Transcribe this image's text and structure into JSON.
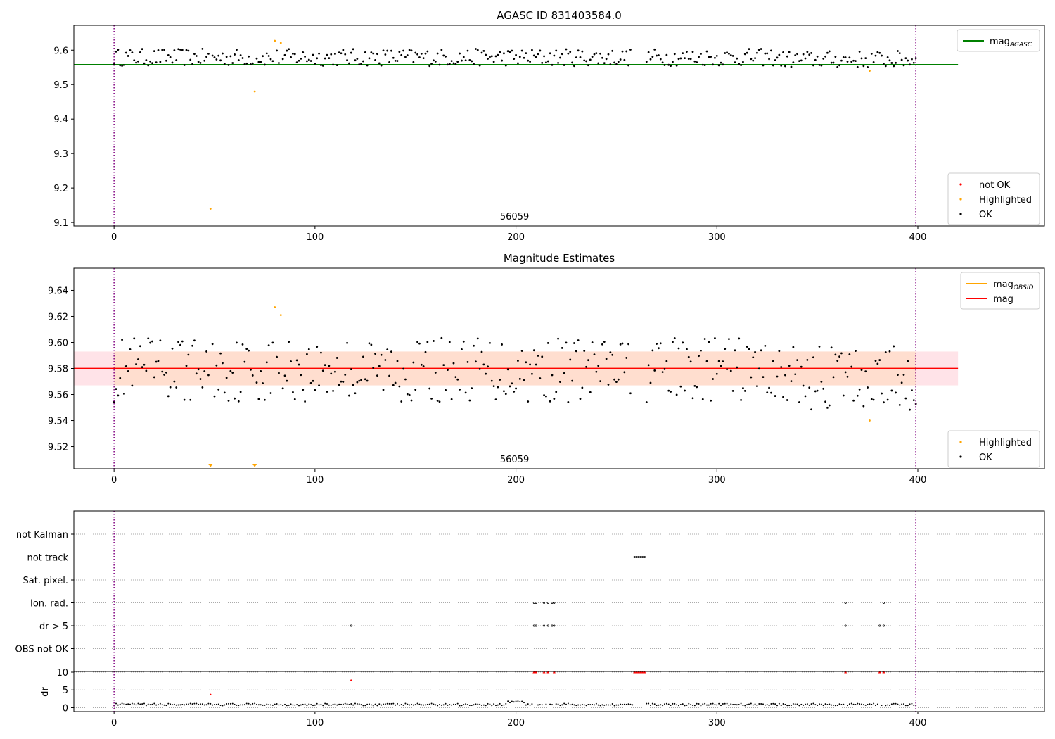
{
  "figure": {
    "title": "AGASC ID 831403584.0",
    "obsid_label": "56059",
    "colors": {
      "ok": "#000000",
      "highlighted": "#ffa500",
      "not_ok": "#ff0000",
      "agasc_line": "#008000",
      "mag_line": "#ff0000",
      "obsid_line": "#ffa500",
      "band": "#ffc0cb",
      "obsid_band": "#ffdab9",
      "vline": "#800080"
    }
  },
  "chart_data": [
    {
      "type": "scatter",
      "title": "AGASC ID 831403584.0",
      "xlim": [
        -20,
        463
      ],
      "ylim": [
        9.09,
        9.672
      ],
      "xticks": [
        0,
        100,
        200,
        300,
        400
      ],
      "yticks": [
        9.1,
        9.2,
        9.3,
        9.4,
        9.5,
        9.6
      ],
      "ytick_labels": [
        "9.1",
        "9.2",
        "9.3",
        "9.4",
        "9.5",
        "9.6"
      ],
      "vlines": [
        0,
        399
      ],
      "hline": {
        "name": "mag_AGASC",
        "y": 9.558,
        "x": [
          -20,
          420
        ]
      },
      "annotation": {
        "text": "56059",
        "x": 200
      },
      "legend_top": [
        {
          "label": "mag",
          "sub": "AGASC",
          "color": "#008000"
        }
      ],
      "legend_bottom": [
        {
          "label": "not OK",
          "color": "#ff0000"
        },
        {
          "label": "Highlighted",
          "color": "#ffa500"
        },
        {
          "label": "OK",
          "color": "#000000"
        }
      ],
      "highlighted": [
        [
          48,
          9.14
        ],
        [
          70,
          9.48
        ],
        [
          80,
          9.627
        ],
        [
          83,
          9.621
        ],
        [
          376,
          9.54
        ]
      ]
    },
    {
      "type": "scatter",
      "title": "Magnitude Estimates",
      "xlim": [
        -20,
        463
      ],
      "ylim": [
        9.503,
        9.657
      ],
      "xticks": [
        0,
        100,
        200,
        300,
        400
      ],
      "yticks": [
        9.52,
        9.54,
        9.56,
        9.58,
        9.6,
        9.62,
        9.64
      ],
      "ytick_labels": [
        "9.52",
        "9.54",
        "9.56",
        "9.58",
        "9.60",
        "9.62",
        "9.64"
      ],
      "vlines": [
        0,
        399
      ],
      "mag": 9.58,
      "band": [
        9.567,
        9.593
      ],
      "obsid_band": [
        9.567,
        9.593
      ],
      "annotation": {
        "text": "56059",
        "x": 200
      },
      "legend_top": [
        {
          "label": "mag",
          "sub": "OBSID",
          "color": "#ffa500"
        },
        {
          "label": "mag",
          "sub": "",
          "color": "#ff0000"
        }
      ],
      "legend_bottom": [
        {
          "label": "Highlighted",
          "color": "#ffa500"
        },
        {
          "label": "OK",
          "color": "#000000"
        }
      ],
      "highlighted": [
        [
          80,
          9.627
        ],
        [
          83,
          9.621
        ],
        [
          376,
          9.54
        ]
      ],
      "clipped_low": [
        48,
        70
      ]
    },
    {
      "type": "scatter",
      "title": "",
      "xlim": [
        -20,
        463
      ],
      "xticks": [
        0,
        100,
        200,
        300,
        400
      ],
      "vlines": [
        0,
        399
      ],
      "flag_rows": [
        "not Kalman",
        "not track",
        "Sat. pixel.",
        "Ion. rad.",
        "dr > 5",
        "OBS not OK"
      ],
      "flags": {
        "not track": [
          259,
          260,
          261,
          262,
          263,
          264
        ],
        "Ion. rad.": [
          209,
          210,
          214,
          216,
          218,
          219,
          364,
          383
        ],
        "dr > 5": [
          118,
          209,
          210,
          214,
          216,
          218,
          219,
          364,
          381,
          383
        ]
      },
      "dr": {
        "ylabel": "dr",
        "yticks": [
          0,
          5,
          10
        ],
        "ylim": [
          -0.5,
          10.2
        ],
        "capped_at_10": [
          209,
          210,
          214,
          216,
          219,
          259,
          260,
          261,
          262,
          263,
          264,
          364,
          381,
          383
        ],
        "red_points": [
          [
            48,
            3.7
          ],
          [
            118,
            7.7
          ]
        ]
      }
    }
  ]
}
